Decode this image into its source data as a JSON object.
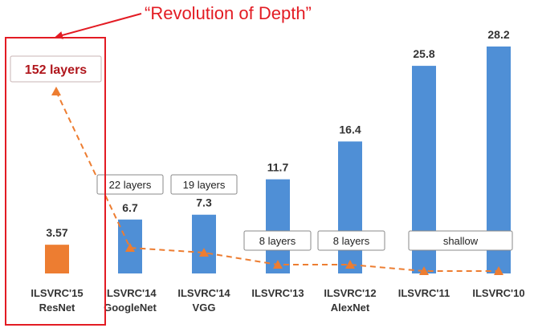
{
  "headline": "“Revolution of Depth”",
  "colors": {
    "accent": "#e31b23",
    "accent_dark": "#b0161c",
    "bar_blue": "#4f8fd6",
    "bar_orange": "#ed7d31",
    "trend_orange": "#ed7d31"
  },
  "chart_data": {
    "type": "bar",
    "categories": [
      [
        "ILSVRC'15",
        "ResNet"
      ],
      [
        "ILSVRC'14",
        "GoogleNet"
      ],
      [
        "ILSVRC'14",
        "VGG"
      ],
      [
        "ILSVRC'13"
      ],
      [
        "ILSVRC'12",
        "AlexNet"
      ],
      [
        "ILSVRC'11"
      ],
      [
        "ILSVRC'10"
      ]
    ],
    "values": [
      3.57,
      6.7,
      7.3,
      11.7,
      16.4,
      25.8,
      28.2
    ],
    "value_labels": [
      "3.57",
      "6.7",
      "7.3",
      "11.7",
      "16.4",
      "25.8",
      "28.2"
    ],
    "bar_colors": [
      "orange",
      "blue",
      "blue",
      "blue",
      "blue",
      "blue",
      "blue"
    ],
    "depth_labels": [
      "152 layers",
      "22 layers",
      "19 layers",
      "8 layers",
      "8 layers",
      "shallow"
    ],
    "depth_label_spans": [
      [
        0,
        0
      ],
      [
        1,
        1
      ],
      [
        2,
        2
      ],
      [
        3,
        3
      ],
      [
        4,
        4
      ],
      [
        5,
        6
      ]
    ],
    "depth_values": [
      152,
      22,
      19,
      8,
      8,
      null,
      null
    ],
    "highlighted_category_index": 0,
    "grid": false,
    "ylim": [
      0,
      30
    ]
  }
}
